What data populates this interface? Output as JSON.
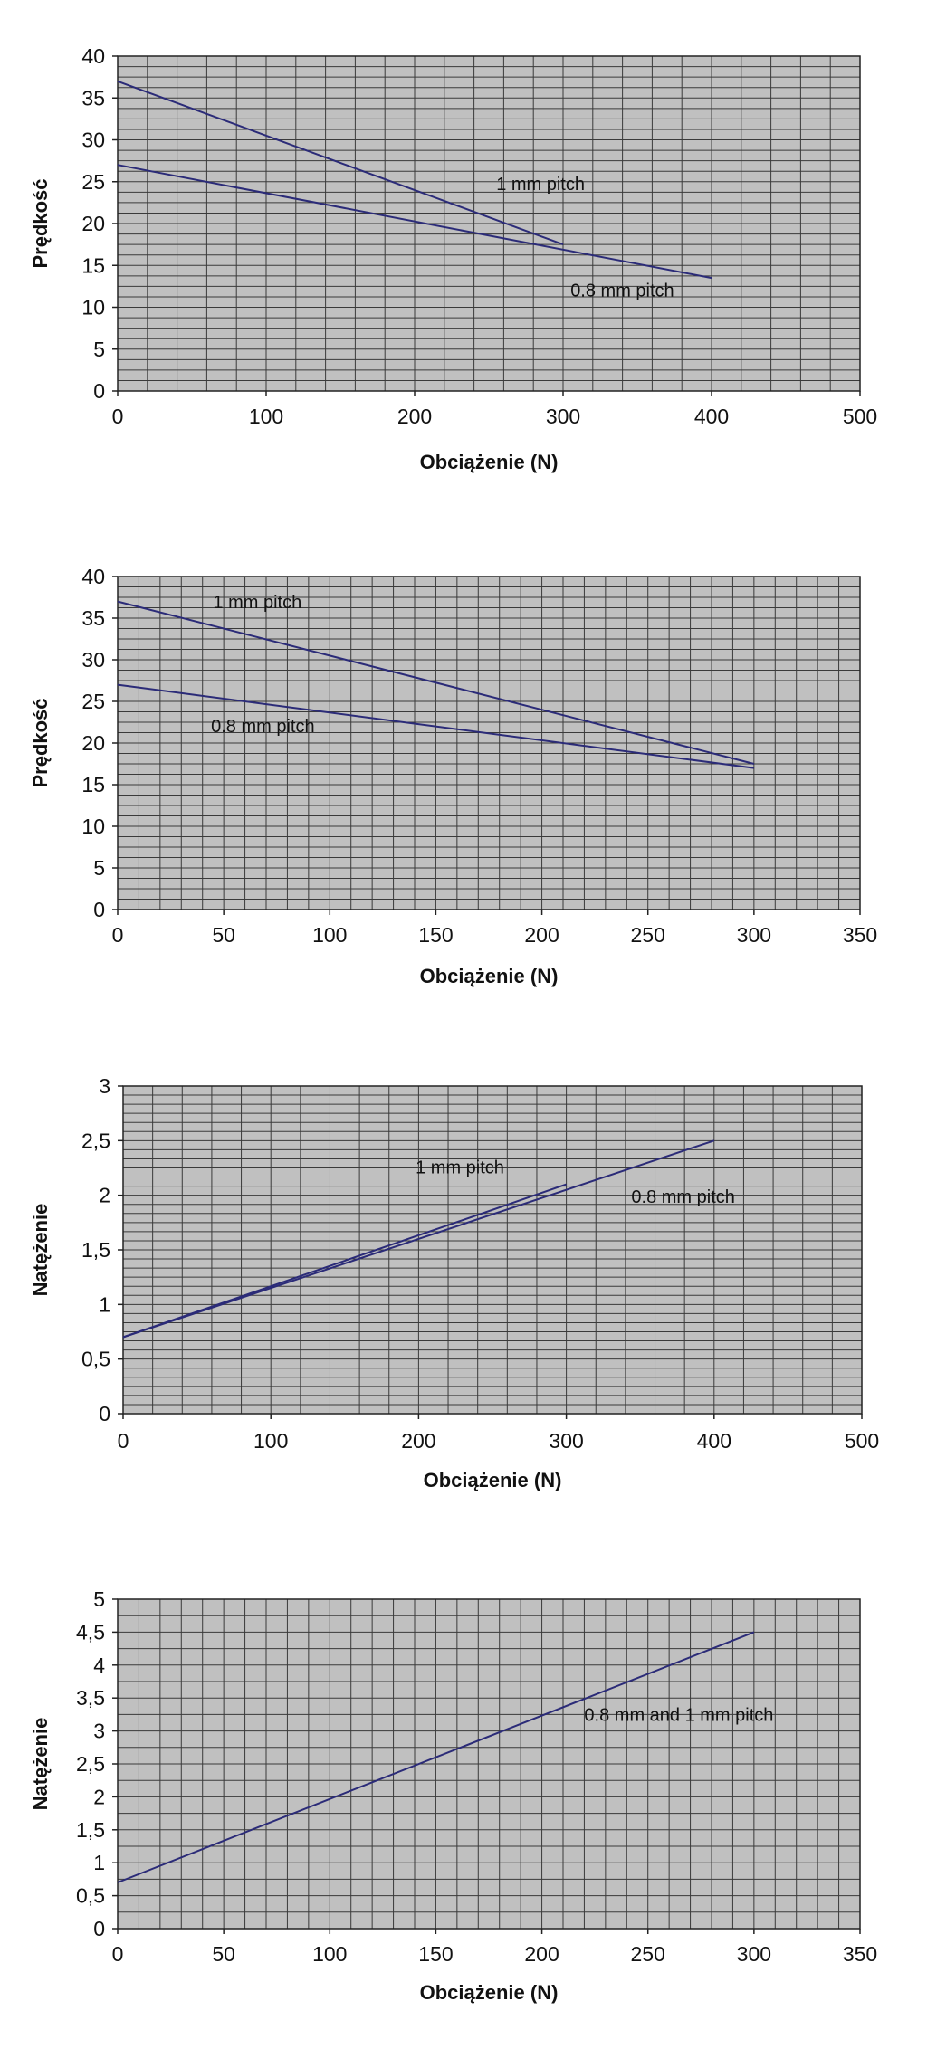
{
  "colors": {
    "plot_bg": "#c0c0c0",
    "grid": "#3a3a3a",
    "series": "#2b2b78",
    "text": "#111111"
  },
  "chart_data": [
    {
      "type": "line",
      "xlabel": "Obciążenie (N)",
      "ylabel": "Prędkość",
      "xlim": [
        0,
        500
      ],
      "ylim": [
        0,
        40
      ],
      "xticks": [
        "0",
        "100",
        "200",
        "300",
        "400",
        "500"
      ],
      "yticks": [
        "0",
        "5",
        "10",
        "15",
        "20",
        "25",
        "30",
        "35",
        "40"
      ],
      "grid": true,
      "series": [
        {
          "x": [
            0,
            300
          ],
          "y": [
            37,
            17.5
          ]
        },
        {
          "x": [
            0,
            400
          ],
          "y": [
            27,
            13.5
          ]
        }
      ],
      "annotations": [
        {
          "text": "1 mm pitch",
          "x": 255,
          "y": 24
        },
        {
          "text": "0.8 mm pitch",
          "x": 305,
          "y": 11.3
        }
      ]
    },
    {
      "type": "line",
      "xlabel": "Obciążenie (N)",
      "ylabel": "Prędkość",
      "xlim": [
        0,
        350
      ],
      "ylim": [
        0,
        40
      ],
      "xticks": [
        "0",
        "50",
        "100",
        "150",
        "200",
        "250",
        "300",
        "350"
      ],
      "yticks": [
        "0",
        "5",
        "10",
        "15",
        "20",
        "25",
        "30",
        "35",
        "40"
      ],
      "grid": true,
      "series": [
        {
          "x": [
            0,
            300
          ],
          "y": [
            37,
            17.5
          ]
        },
        {
          "x": [
            0,
            300
          ],
          "y": [
            27,
            17
          ]
        }
      ],
      "annotations": [
        {
          "text": "1 mm pitch",
          "x": 45,
          "y": 36.2
        },
        {
          "text": "0.8 mm pitch",
          "x": 44,
          "y": 21.3
        }
      ]
    },
    {
      "type": "line",
      "xlabel": "Obciążenie (N)",
      "ylabel": "Natężenie",
      "xlim": [
        0,
        500
      ],
      "ylim": [
        0,
        3
      ],
      "xticks": [
        "0",
        "100",
        "200",
        "300",
        "400",
        "500"
      ],
      "yticks": [
        "0",
        "0,5",
        "1",
        "1,5",
        "2",
        "2,5",
        "3"
      ],
      "grid": true,
      "series": [
        {
          "x": [
            0,
            300
          ],
          "y": [
            0.7,
            2.1
          ]
        },
        {
          "x": [
            0,
            400
          ],
          "y": [
            0.7,
            2.5
          ]
        }
      ],
      "annotations": [
        {
          "text": "1 mm pitch",
          "x": 198,
          "y": 2.2
        },
        {
          "text": "0.8 mm pitch",
          "x": 344,
          "y": 1.93
        }
      ]
    },
    {
      "type": "line",
      "xlabel": "Obciążenie (N)",
      "ylabel": "Natężenie",
      "xlim": [
        0,
        350
      ],
      "ylim": [
        0,
        5
      ],
      "xticks": [
        "0",
        "50",
        "100",
        "150",
        "200",
        "250",
        "300",
        "350"
      ],
      "yticks": [
        "0",
        "0,5",
        "1",
        "1,5",
        "2",
        "2,5",
        "3",
        "3,5",
        "4",
        "4,5",
        "5"
      ],
      "grid": true,
      "series": [
        {
          "x": [
            0,
            300
          ],
          "y": [
            0.7,
            4.5
          ]
        }
      ],
      "annotations": [
        {
          "text": "0.8 mm and 1 mm pitch",
          "x": 220,
          "y": 3.15
        }
      ]
    }
  ]
}
